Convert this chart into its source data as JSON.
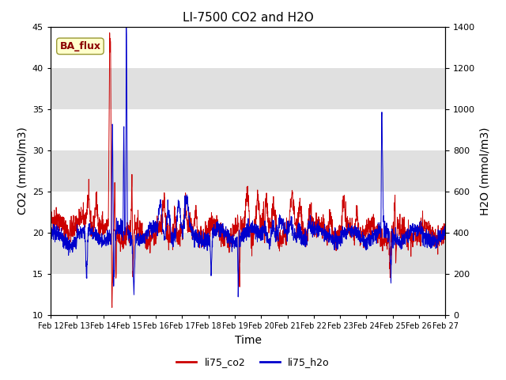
{
  "title": "LI-7500 CO2 and H2O",
  "xlabel": "Time",
  "ylabel_left": "CO2 (mmol/m3)",
  "ylabel_right": "H2O (mmol/m3)",
  "ylim_left": [
    10,
    45
  ],
  "ylim_right": [
    0,
    1400
  ],
  "yticks_left": [
    10,
    15,
    20,
    25,
    30,
    35,
    40,
    45
  ],
  "yticks_right": [
    0,
    200,
    400,
    600,
    800,
    1000,
    1200,
    1400
  ],
  "date_labels": [
    "Feb 12",
    "Feb 13",
    "Feb 14",
    "Feb 15",
    "Feb 16",
    "Feb 17",
    "Feb 18",
    "Feb 19",
    "Feb 20",
    "Feb 21",
    "Feb 22",
    "Feb 23",
    "Feb 24",
    "Feb 25",
    "Feb 26",
    "Feb 27"
  ],
  "co2_color": "#cc0000",
  "h2o_color": "#0000cc",
  "legend_labels": [
    "li75_co2",
    "li75_h2o"
  ],
  "annotation_text": "BA_flux",
  "background_band_color": "#e0e0e0",
  "title_fontsize": 11,
  "axis_fontsize": 10,
  "tick_fontsize": 8
}
